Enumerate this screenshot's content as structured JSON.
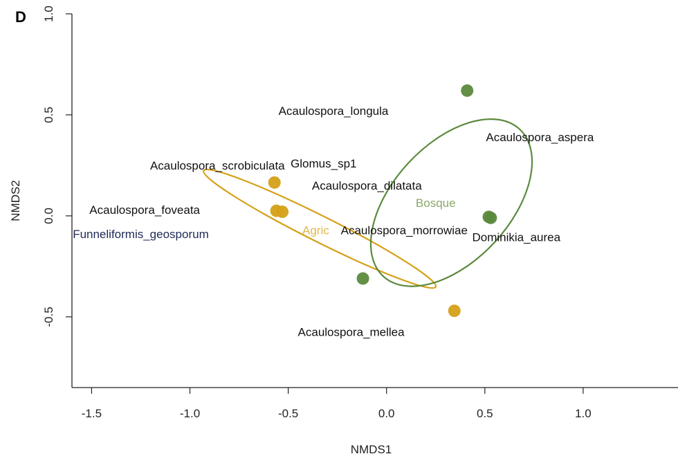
{
  "chart_data": {
    "type": "scatter",
    "panel_label": "D",
    "xlabel": "NMDS1",
    "ylabel": "NMDS2",
    "xlim": [
      -1.6,
      1.5
    ],
    "ylim": [
      -0.85,
      1.0
    ],
    "x_ticks": [
      -1.5,
      -1.0,
      -0.5,
      0.0,
      0.5,
      1.0
    ],
    "x_tick_labels": [
      "-1.5",
      "-1.0",
      "-0.5",
      "0.0",
      "0.5",
      "1.0"
    ],
    "y_ticks": [
      -0.5,
      0.0,
      0.5,
      1.0
    ],
    "y_tick_labels": [
      "-0.5",
      "0.0",
      "0.5",
      "1.0"
    ],
    "grid": false,
    "colors": {
      "agric": "#d4a017",
      "bosque": "#5b8a3c",
      "bosque_label": "#8aa86a",
      "agric_label": "#e0b84a",
      "text": "#111111",
      "navy_text": "#1f2a55"
    },
    "series": [
      {
        "name": "Agric",
        "points": [
          [
            -0.57,
            0.165
          ],
          [
            -0.56,
            0.025
          ],
          [
            -0.53,
            0.02
          ],
          [
            0.345,
            -0.47
          ]
        ],
        "ellipse": {
          "center": [
            -0.34,
            -0.064
          ],
          "semi_axes": [
            0.66,
            0.064
          ],
          "angle_deg": -26.6
        }
      },
      {
        "name": "Bosque",
        "points": [
          [
            0.41,
            0.62
          ],
          [
            0.53,
            -0.01
          ],
          [
            0.52,
            -0.005
          ],
          [
            -0.12,
            -0.31
          ]
        ],
        "ellipse": {
          "center": [
            0.33,
            0.065
          ],
          "semi_axes": [
            0.51,
            0.29
          ],
          "angle_deg": 47.1
        }
      }
    ],
    "species_labels": [
      {
        "text": "Acaulospora_longula",
        "x": -0.27,
        "y": 0.52
      },
      {
        "text": "Acaulospora_aspera",
        "x": 0.78,
        "y": 0.39
      },
      {
        "text": "Acaulospora_scrobiculata",
        "x": -0.86,
        "y": 0.25
      },
      {
        "text": "Glomus_sp1",
        "x": -0.32,
        "y": 0.26
      },
      {
        "text": "Acaulospora_dilatata",
        "x": -0.1,
        "y": 0.15
      },
      {
        "text": "Acaulospora_foveata",
        "x": -1.23,
        "y": 0.03
      },
      {
        "text": "Funneliformis_geosporum",
        "x": -1.25,
        "y": -0.09
      },
      {
        "text": "Acaulospora_morrowiae",
        "x": 0.09,
        "y": -0.07
      },
      {
        "text": "Dominikia_aurea",
        "x": 0.66,
        "y": -0.105
      },
      {
        "text": "Acaulospora_mellea",
        "x": -0.18,
        "y": -0.575
      }
    ],
    "group_labels": [
      {
        "text": "Bosque",
        "x": 0.25,
        "y": 0.065
      },
      {
        "text": "Agric",
        "x": -0.36,
        "y": -0.07
      }
    ]
  }
}
